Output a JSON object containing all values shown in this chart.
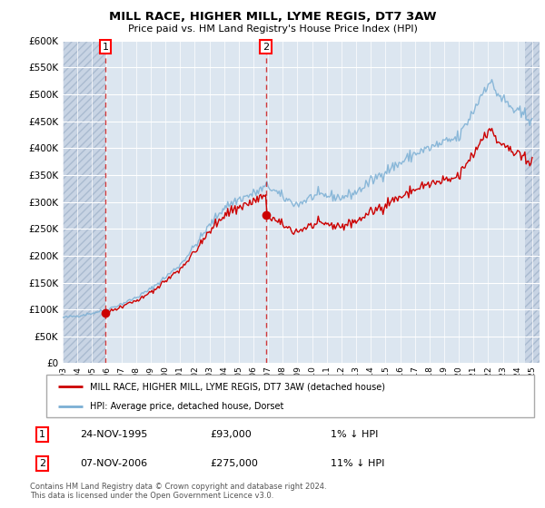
{
  "title": "MILL RACE, HIGHER MILL, LYME REGIS, DT7 3AW",
  "subtitle": "Price paid vs. HM Land Registry's House Price Index (HPI)",
  "legend_line1": "MILL RACE, HIGHER MILL, LYME REGIS, DT7 3AW (detached house)",
  "legend_line2": "HPI: Average price, detached house, Dorset",
  "footnote1": "Contains HM Land Registry data © Crown copyright and database right 2024.",
  "footnote2": "This data is licensed under the Open Government Licence v3.0.",
  "table_rows": [
    {
      "num": "1",
      "date": "24-NOV-1995",
      "price": "£93,000",
      "hpi": "1% ↓ HPI"
    },
    {
      "num": "2",
      "date": "07-NOV-2006",
      "price": "£275,000",
      "hpi": "11% ↓ HPI"
    }
  ],
  "sale1_year": 1995.9,
  "sale1_price": 93000,
  "sale2_year": 2006.85,
  "sale2_price": 275000,
  "ylim": [
    0,
    600000
  ],
  "yticks": [
    0,
    50000,
    100000,
    150000,
    200000,
    250000,
    300000,
    350000,
    400000,
    450000,
    500000,
    550000,
    600000
  ],
  "hpi_color": "#7bafd4",
  "sale_color": "#cc0000",
  "plot_bg": "#dce6f0",
  "grid_color": "#ffffff",
  "hatch_bg": "#c8d4e4"
}
